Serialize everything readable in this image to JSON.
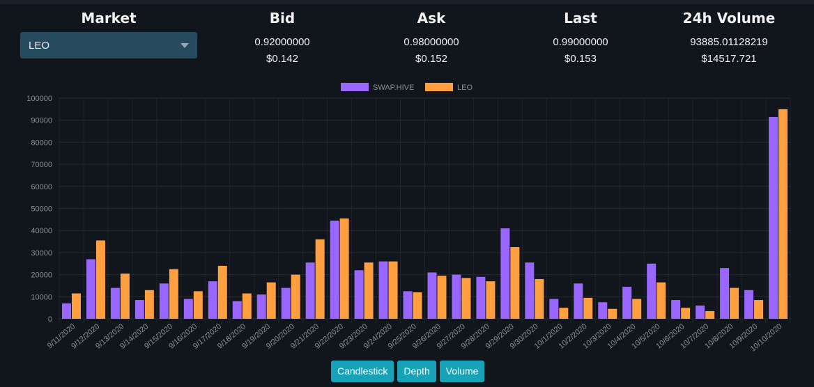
{
  "header": {
    "market": {
      "title": "Market",
      "selected": "LEO"
    },
    "bid": {
      "title": "Bid",
      "value": "0.92000000",
      "usd": "$0.142"
    },
    "ask": {
      "title": "Ask",
      "value": "0.98000000",
      "usd": "$0.152"
    },
    "last": {
      "title": "Last",
      "value": "0.99000000",
      "usd": "$0.153"
    },
    "volume": {
      "title": "24h Volume",
      "value": "93885.01128219",
      "usd": "$14517.721"
    }
  },
  "chart_data": {
    "type": "bar",
    "categories": [
      "9/11/2020",
      "9/12/2020",
      "9/13/2020",
      "9/14/2020",
      "9/15/2020",
      "9/16/2020",
      "9/17/2020",
      "9/18/2020",
      "9/19/2020",
      "9/20/2020",
      "9/21/2020",
      "9/22/2020",
      "9/23/2020",
      "9/24/2020",
      "9/25/2020",
      "9/26/2020",
      "9/27/2020",
      "9/28/2020",
      "9/29/2020",
      "9/30/2020",
      "10/1/2020",
      "10/2/2020",
      "10/3/2020",
      "10/4/2020",
      "10/5/2020",
      "10/6/2020",
      "10/7/2020",
      "10/8/2020",
      "10/9/2020",
      "10/10/2020"
    ],
    "series": [
      {
        "name": "SWAP.HIVE",
        "color": "#9966ff",
        "values": [
          7000,
          27000,
          14000,
          8500,
          16000,
          9000,
          17000,
          8000,
          11000,
          14000,
          25500,
          44500,
          22000,
          26000,
          12500,
          21000,
          20000,
          19000,
          41000,
          25500,
          9000,
          16000,
          7500,
          14500,
          25000,
          8500,
          6000,
          23000,
          13000,
          91500
        ]
      },
      {
        "name": "LEO",
        "color": "#ff9f40",
        "values": [
          11500,
          35500,
          20500,
          13000,
          22500,
          12500,
          24000,
          11500,
          16500,
          20000,
          36000,
          45500,
          25500,
          26000,
          12000,
          19500,
          18500,
          17000,
          32500,
          18000,
          5000,
          9500,
          4500,
          9000,
          16500,
          5000,
          3500,
          14000,
          8500,
          95000
        ]
      }
    ],
    "ylim": [
      0,
      100000
    ],
    "yticks": [
      0,
      10000,
      20000,
      30000,
      40000,
      50000,
      60000,
      70000,
      80000,
      90000,
      100000
    ],
    "legend": "top-center",
    "grid": true
  },
  "buttons": [
    {
      "label": "Candlestick"
    },
    {
      "label": "Depth"
    },
    {
      "label": "Volume"
    }
  ]
}
